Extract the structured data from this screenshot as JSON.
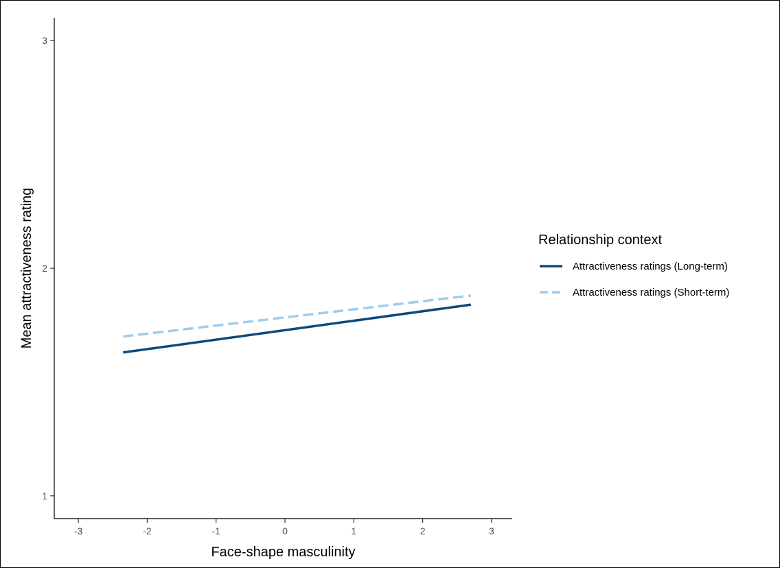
{
  "chart_data": {
    "type": "line",
    "xlabel": "Face-shape masculinity",
    "ylabel": "Mean attractiveness rating",
    "xlim": [
      -3.35,
      3.3
    ],
    "ylim": [
      0.9,
      3.1
    ],
    "x_ticks": [
      -3,
      -2,
      -1,
      0,
      1,
      2,
      3
    ],
    "x_tick_labels": [
      "-3",
      "-2",
      "-1",
      "0",
      "1",
      "2",
      "3"
    ],
    "y_ticks": [
      1,
      2,
      3
    ],
    "y_tick_labels": [
      "1",
      "2",
      "3"
    ],
    "grid": false,
    "legend": {
      "title": "Relationship context",
      "placement": "right"
    },
    "series": [
      {
        "name": "Attractiveness ratings (Long-term)",
        "color": "#0c4a7e",
        "dash": "solid",
        "x": [
          -2.35,
          2.7
        ],
        "y": [
          1.63,
          1.84
        ]
      },
      {
        "name": "Attractiveness ratings (Short-term)",
        "color": "#9ccdf1",
        "dash": "dashed",
        "x": [
          -2.35,
          2.7
        ],
        "y": [
          1.7,
          1.88
        ]
      }
    ]
  }
}
